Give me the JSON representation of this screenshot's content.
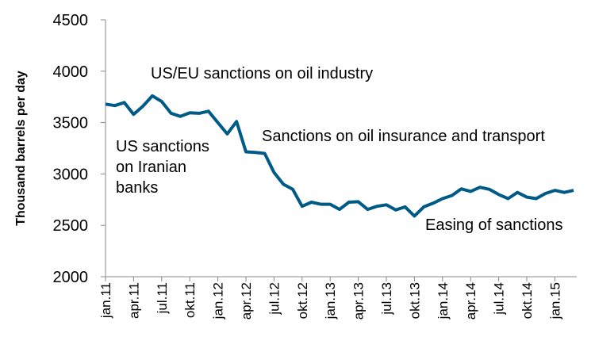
{
  "chart_data": {
    "type": "line",
    "title": "",
    "xlabel": "",
    "ylabel": "Thousand barrels per day",
    "ylim": [
      2000,
      4500
    ],
    "yticks": [
      2000,
      2500,
      3000,
      3500,
      4000,
      4500
    ],
    "grid": false,
    "line_color": "#005a87",
    "x": [
      "jan.11",
      "feb.11",
      "mar.11",
      "apr.11",
      "mai.11",
      "jun.11",
      "jul.11",
      "aug.11",
      "sep.11",
      "okt.11",
      "nov.11",
      "des.11",
      "jan.12",
      "feb.12",
      "mar.12",
      "apr.12",
      "mai.12",
      "jun.12",
      "jul.12",
      "aug.12",
      "sep.12",
      "okt.12",
      "nov.12",
      "des.12",
      "jan.13",
      "feb.13",
      "mar.13",
      "apr.13",
      "mai.13",
      "jun.13",
      "jul.13",
      "aug.13",
      "sep.13",
      "okt.13",
      "nov.13",
      "des.13",
      "jan.14",
      "feb.14",
      "mar.14",
      "apr.14",
      "mai.14",
      "jun.14",
      "jul.14",
      "aug.14",
      "sep.14",
      "okt.14",
      "nov.14",
      "des.14",
      "jan.15",
      "feb.15",
      "mar.15"
    ],
    "xtick_labels": [
      "jan.11",
      "apr.11",
      "jul.11",
      "okt.11",
      "jan.12",
      "apr.12",
      "jul.12",
      "okt.12",
      "jan.13",
      "apr.13",
      "jul.13",
      "okt.13",
      "jan.14",
      "apr.14",
      "jul.14",
      "okt.14",
      "jan.15"
    ],
    "series": [
      {
        "values": [
          3680,
          3665,
          3695,
          3580,
          3660,
          3760,
          3705,
          3590,
          3560,
          3595,
          3590,
          3610,
          3500,
          3390,
          3510,
          3215,
          3210,
          3200,
          3015,
          2900,
          2850,
          2685,
          2725,
          2705,
          2705,
          2655,
          2725,
          2730,
          2655,
          2685,
          2700,
          2650,
          2680,
          2590,
          2680,
          2715,
          2760,
          2790,
          2855,
          2830,
          2870,
          2850,
          2800,
          2760,
          2820,
          2775,
          2760,
          2810,
          2840,
          2820,
          2840
        ]
      }
    ],
    "annotations": {
      "us_eu": "US/EU sanctions on oil industry",
      "insurance": "Sanctions on oil insurance and transport",
      "us_banks": [
        "US sanctions",
        "on Iranian",
        "banks"
      ],
      "easing": "Easing of sanctions"
    }
  }
}
